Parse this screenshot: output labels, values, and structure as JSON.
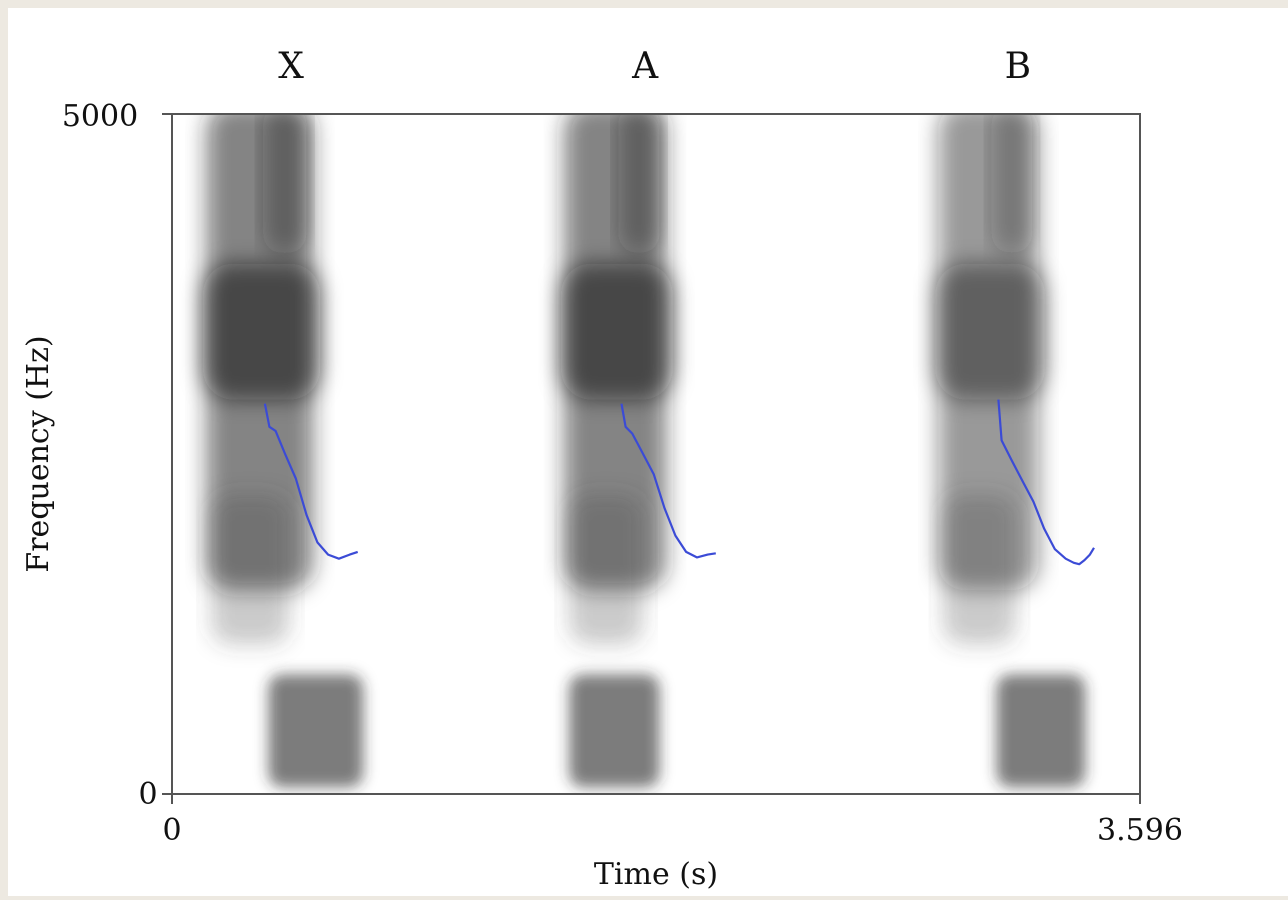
{
  "chart_data": {
    "type": "spectrogram",
    "segments": [
      {
        "label": "X",
        "t_start": 0.115,
        "t_end": 0.755
      },
      {
        "label": "A",
        "t_start": 1.445,
        "t_end": 2.055
      },
      {
        "label": "B",
        "t_start": 2.835,
        "t_end": 3.435
      }
    ],
    "xlabel": "Time (s)",
    "ylabel": "Frequency (Hz)",
    "xlim": [
      0,
      3.596
    ],
    "ylim": [
      0,
      5000
    ],
    "x_tick_labels": [
      "0",
      "3.596"
    ],
    "y_tick_labels": [
      "0",
      "5000"
    ],
    "pitch_tracks": [
      {
        "color": "#3b4bd6",
        "points": [
          [
            0.345,
            2870
          ],
          [
            0.362,
            2700
          ],
          [
            0.385,
            2670
          ],
          [
            0.42,
            2500
          ],
          [
            0.46,
            2320
          ],
          [
            0.5,
            2050
          ],
          [
            0.54,
            1850
          ],
          [
            0.58,
            1760
          ],
          [
            0.62,
            1730
          ],
          [
            0.66,
            1760
          ],
          [
            0.69,
            1780
          ]
        ]
      },
      {
        "color": "#3b4bd6",
        "points": [
          [
            1.67,
            2870
          ],
          [
            1.685,
            2700
          ],
          [
            1.71,
            2650
          ],
          [
            1.75,
            2500
          ],
          [
            1.79,
            2350
          ],
          [
            1.83,
            2100
          ],
          [
            1.87,
            1900
          ],
          [
            1.91,
            1780
          ],
          [
            1.95,
            1740
          ],
          [
            1.99,
            1760
          ],
          [
            2.02,
            1770
          ]
        ]
      },
      {
        "color": "#3b4bd6",
        "points": [
          [
            3.07,
            2900
          ],
          [
            3.082,
            2600
          ],
          [
            3.12,
            2450
          ],
          [
            3.16,
            2300
          ],
          [
            3.2,
            2150
          ],
          [
            3.24,
            1950
          ],
          [
            3.28,
            1800
          ],
          [
            3.32,
            1730
          ],
          [
            3.35,
            1700
          ],
          [
            3.37,
            1690
          ],
          [
            3.39,
            1720
          ],
          [
            3.41,
            1760
          ],
          [
            3.425,
            1810
          ]
        ]
      }
    ]
  }
}
